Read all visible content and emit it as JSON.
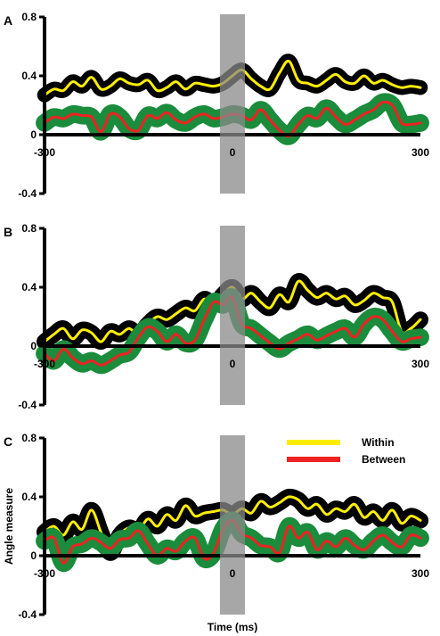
{
  "chart_data": [
    {
      "type": "line",
      "panel_label": "A",
      "xlim": [
        -300,
        300
      ],
      "ylim": [
        -0.4,
        0.8
      ],
      "x_ticks": [
        -300,
        0,
        300
      ],
      "y_ticks": [
        0.8,
        0.4,
        0,
        -0.4
      ],
      "x_tick_labels": [
        "-300",
        "0",
        "300"
      ],
      "y_tick_labels": [
        "0.8",
        "0.4",
        "0",
        "-0.4"
      ],
      "shaded_window": [
        -20,
        20
      ],
      "series": [
        {
          "name": "Within",
          "color": "#ffee00",
          "band_color": "#000000",
          "band_halfwidth": 0.05,
          "x": [
            -300,
            -285,
            -270,
            -255,
            -240,
            -225,
            -210,
            -195,
            -180,
            -165,
            -150,
            -135,
            -120,
            -105,
            -90,
            -75,
            -60,
            -45,
            -30,
            -15,
            0,
            15,
            30,
            45,
            60,
            75,
            90,
            105,
            120,
            135,
            150,
            165,
            180,
            195,
            210,
            225,
            240,
            255,
            270,
            285,
            300
          ],
          "values": [
            0.27,
            0.31,
            0.3,
            0.36,
            0.33,
            0.39,
            0.31,
            0.33,
            0.38,
            0.35,
            0.34,
            0.37,
            0.3,
            0.32,
            0.36,
            0.31,
            0.35,
            0.34,
            0.33,
            0.35,
            0.4,
            0.44,
            0.38,
            0.33,
            0.31,
            0.42,
            0.5,
            0.37,
            0.35,
            0.33,
            0.37,
            0.41,
            0.36,
            0.35,
            0.4,
            0.35,
            0.37,
            0.34,
            0.32,
            0.33,
            0.32
          ]
        },
        {
          "name": "Between",
          "color": "#ee2222",
          "band_color": "#1a8c3c",
          "band_halfwidth": 0.06,
          "x": [
            -300,
            -285,
            -270,
            -255,
            -240,
            -225,
            -210,
            -195,
            -180,
            -165,
            -150,
            -135,
            -120,
            -105,
            -90,
            -75,
            -60,
            -45,
            -30,
            -15,
            0,
            15,
            30,
            45,
            60,
            75,
            90,
            105,
            120,
            135,
            150,
            165,
            180,
            195,
            210,
            225,
            240,
            255,
            270,
            285,
            300
          ],
          "values": [
            0.08,
            0.12,
            0.11,
            0.14,
            0.13,
            0.12,
            0.02,
            0.14,
            0.12,
            0.04,
            0.03,
            0.13,
            0.11,
            0.15,
            0.1,
            0.08,
            0.12,
            0.14,
            0.11,
            0.12,
            0.14,
            0.13,
            0.1,
            0.17,
            0.1,
            0.03,
            -0.01,
            0.07,
            0.13,
            0.11,
            0.18,
            0.12,
            0.07,
            0.1,
            0.14,
            0.17,
            0.22,
            0.2,
            0.08,
            0.07,
            0.08
          ]
        }
      ]
    },
    {
      "type": "line",
      "panel_label": "B",
      "xlim": [
        -300,
        300
      ],
      "ylim": [
        -0.4,
        0.8
      ],
      "x_ticks": [
        -300,
        0,
        300
      ],
      "y_ticks": [
        0.8,
        0.4,
        0,
        -0.4
      ],
      "x_tick_labels": [
        "-300",
        "0",
        "300"
      ],
      "y_tick_labels": [
        "0.8",
        "0.4",
        "0",
        "-0.4"
      ],
      "shaded_window": [
        -20,
        20
      ],
      "series": [
        {
          "name": "Within",
          "color": "#ffee00",
          "band_color": "#000000",
          "band_halfwidth": 0.055,
          "x": [
            -300,
            -285,
            -270,
            -255,
            -240,
            -225,
            -210,
            -195,
            -180,
            -165,
            -150,
            -135,
            -120,
            -105,
            -90,
            -75,
            -60,
            -45,
            -30,
            -15,
            0,
            15,
            30,
            45,
            60,
            75,
            90,
            105,
            120,
            135,
            150,
            165,
            180,
            195,
            210,
            225,
            240,
            255,
            270,
            285,
            300
          ],
          "values": [
            0.03,
            0.08,
            0.12,
            0.05,
            0.11,
            0.09,
            0.03,
            0.1,
            0.08,
            0.12,
            0.08,
            0.15,
            0.2,
            0.18,
            0.22,
            0.26,
            0.24,
            0.32,
            0.28,
            0.35,
            0.4,
            0.32,
            0.36,
            0.3,
            0.26,
            0.35,
            0.3,
            0.44,
            0.38,
            0.33,
            0.36,
            0.32,
            0.34,
            0.28,
            0.31,
            0.36,
            0.33,
            0.3,
            0.1,
            0.12,
            0.18
          ]
        },
        {
          "name": "Between",
          "color": "#ee2222",
          "band_color": "#1a8c3c",
          "band_halfwidth": 0.06,
          "x": [
            -300,
            -285,
            -270,
            -255,
            -240,
            -225,
            -210,
            -195,
            -180,
            -165,
            -150,
            -135,
            -120,
            -105,
            -90,
            -75,
            -60,
            -45,
            -30,
            -15,
            0,
            15,
            30,
            45,
            60,
            75,
            90,
            105,
            120,
            135,
            150,
            165,
            180,
            195,
            210,
            225,
            240,
            255,
            270,
            285,
            300
          ],
          "values": [
            -0.05,
            -0.1,
            -0.02,
            -0.08,
            -0.12,
            -0.1,
            -0.13,
            -0.1,
            -0.06,
            -0.04,
            0.06,
            0.13,
            0.1,
            0.03,
            0.08,
            0.02,
            0.04,
            0.18,
            0.3,
            0.28,
            0.33,
            0.15,
            0.12,
            0.07,
            0.02,
            -0.02,
            0.02,
            0.05,
            0.08,
            0.04,
            0.07,
            0.1,
            0.12,
            0.06,
            0.15,
            0.2,
            0.18,
            0.1,
            0.03,
            0.05,
            0.06
          ]
        }
      ]
    },
    {
      "type": "line",
      "panel_label": "C",
      "xlim": [
        -300,
        300
      ],
      "ylim": [
        -0.4,
        0.8
      ],
      "x_ticks": [
        -300,
        0,
        300
      ],
      "y_ticks": [
        0.8,
        0.4,
        0,
        -0.4
      ],
      "x_tick_labels": [
        "-300",
        "0",
        "300"
      ],
      "y_tick_labels": [
        "0.8",
        "0.4",
        "0",
        "-0.4"
      ],
      "xlabel": "Time (ms)",
      "ylabel": "Angle measure",
      "shaded_window": [
        -20,
        20
      ],
      "legend": {
        "position": "top-right",
        "items": [
          "Within",
          "Between"
        ]
      },
      "series": [
        {
          "name": "Within",
          "color": "#ffee00",
          "band_color": "#000000",
          "band_halfwidth": 0.055,
          "x": [
            -300,
            -285,
            -270,
            -255,
            -240,
            -225,
            -210,
            -195,
            -180,
            -165,
            -150,
            -135,
            -120,
            -105,
            -90,
            -75,
            -60,
            -45,
            -30,
            -15,
            0,
            15,
            30,
            45,
            60,
            75,
            90,
            105,
            120,
            135,
            150,
            165,
            180,
            195,
            210,
            225,
            240,
            255,
            270,
            285,
            300
          ],
          "values": [
            0.16,
            0.2,
            0.14,
            0.23,
            0.18,
            0.31,
            0.16,
            0.02,
            0.14,
            0.19,
            0.17,
            0.25,
            0.2,
            0.28,
            0.24,
            0.34,
            0.27,
            0.29,
            0.3,
            0.31,
            0.28,
            0.32,
            0.29,
            0.37,
            0.33,
            0.36,
            0.4,
            0.38,
            0.32,
            0.35,
            0.28,
            0.32,
            0.3,
            0.35,
            0.26,
            0.3,
            0.24,
            0.31,
            0.22,
            0.27,
            0.24
          ]
        },
        {
          "name": "Between",
          "color": "#ee2222",
          "band_color": "#1a8c3c",
          "band_halfwidth": 0.06,
          "x": [
            -300,
            -285,
            -270,
            -255,
            -240,
            -225,
            -210,
            -195,
            -180,
            -165,
            -150,
            -135,
            -120,
            -105,
            -90,
            -75,
            -60,
            -45,
            -30,
            -15,
            0,
            15,
            30,
            45,
            60,
            75,
            90,
            105,
            120,
            135,
            150,
            165,
            180,
            195,
            210,
            225,
            240,
            255,
            270,
            285,
            300
          ],
          "values": [
            0.1,
            0.12,
            -0.05,
            0.06,
            0.08,
            0.12,
            0.09,
            0.05,
            0.11,
            0.12,
            0.17,
            0.08,
            0.0,
            0.05,
            0.03,
            0.1,
            0.12,
            -0.02,
            0.02,
            0.18,
            0.24,
            0.15,
            0.12,
            0.07,
            0.06,
            0.02,
            0.2,
            0.12,
            0.16,
            0.04,
            0.1,
            0.06,
            0.12,
            0.07,
            0.04,
            0.1,
            0.14,
            0.09,
            0.06,
            0.14,
            0.12
          ]
        }
      ]
    }
  ]
}
